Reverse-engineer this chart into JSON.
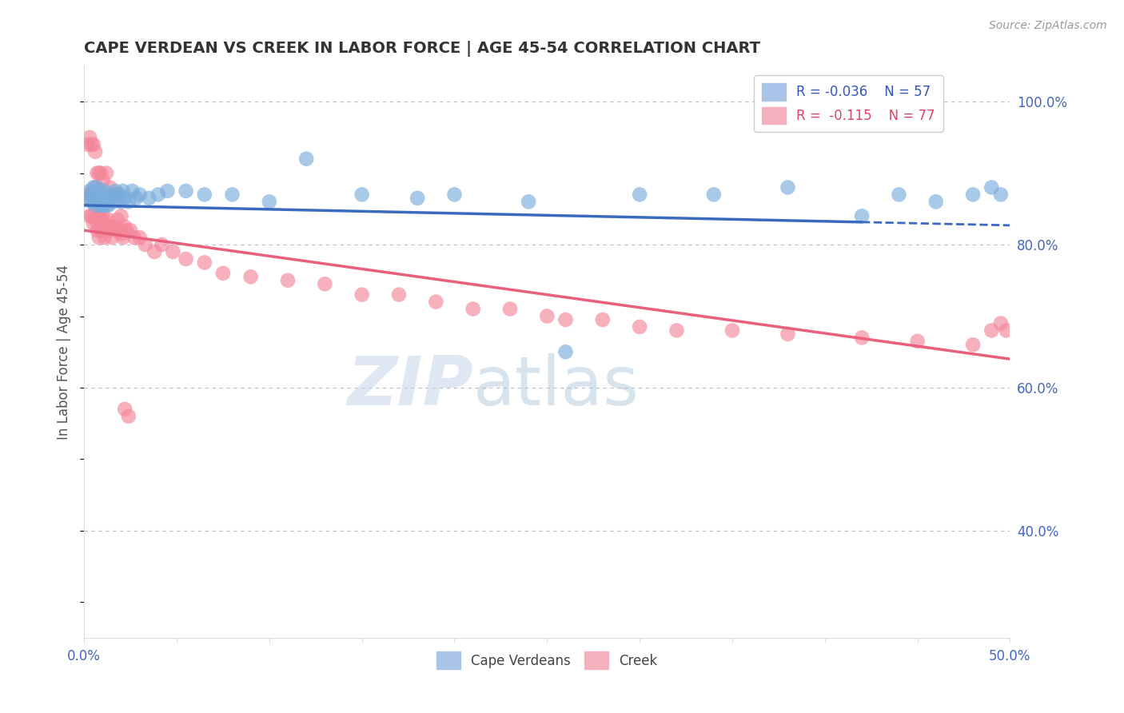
{
  "title": "CAPE VERDEAN VS CREEK IN LABOR FORCE | AGE 45-54 CORRELATION CHART",
  "source": "Source: ZipAtlas.com",
  "ylabel": "In Labor Force | Age 45-54",
  "xlim": [
    0.0,
    0.5
  ],
  "ylim": [
    0.25,
    1.05
  ],
  "yticks": [
    0.4,
    0.6,
    0.8,
    1.0
  ],
  "ytick_labels": [
    "40.0%",
    "60.0%",
    "80.0%",
    "100.0%"
  ],
  "xticks": [
    0.0,
    0.05,
    0.1,
    0.15,
    0.2,
    0.25,
    0.3,
    0.35,
    0.4,
    0.45,
    0.5
  ],
  "xtick_labels": [
    "0.0%",
    "",
    "",
    "",
    "",
    "",
    "",
    "",
    "",
    "",
    "50.0%"
  ],
  "blue_R": -0.036,
  "blue_N": 57,
  "pink_R": -0.115,
  "pink_N": 77,
  "blue_color": "#7aaddc",
  "pink_color": "#f4879a",
  "blue_line_color": "#3b6bbf",
  "pink_line_color": "#e8607a",
  "watermark_zip": "ZIP",
  "watermark_atlas": "atlas",
  "blue_line_solid_end": 0.42,
  "blue_line_x0": 0.0,
  "blue_line_y0": 0.855,
  "blue_line_x1": 0.5,
  "blue_line_y1": 0.827,
  "pink_line_x0": 0.0,
  "pink_line_y0": 0.82,
  "pink_line_x1": 0.5,
  "pink_line_y1": 0.64,
  "blue_scatter_x": [
    0.002,
    0.003,
    0.004,
    0.004,
    0.005,
    0.005,
    0.006,
    0.006,
    0.007,
    0.007,
    0.008,
    0.008,
    0.009,
    0.009,
    0.01,
    0.01,
    0.011,
    0.011,
    0.012,
    0.012,
    0.013,
    0.013,
    0.014,
    0.015,
    0.016,
    0.017,
    0.018,
    0.019,
    0.02,
    0.021,
    0.022,
    0.024,
    0.026,
    0.028,
    0.03,
    0.035,
    0.04,
    0.045,
    0.055,
    0.065,
    0.08,
    0.1,
    0.12,
    0.15,
    0.18,
    0.2,
    0.24,
    0.26,
    0.3,
    0.34,
    0.38,
    0.42,
    0.44,
    0.46,
    0.48,
    0.49,
    0.495
  ],
  "blue_scatter_y": [
    0.865,
    0.875,
    0.87,
    0.86,
    0.88,
    0.86,
    0.87,
    0.855,
    0.88,
    0.865,
    0.875,
    0.86,
    0.865,
    0.855,
    0.87,
    0.855,
    0.875,
    0.86,
    0.865,
    0.855,
    0.87,
    0.855,
    0.865,
    0.87,
    0.86,
    0.875,
    0.865,
    0.87,
    0.86,
    0.875,
    0.865,
    0.86,
    0.875,
    0.865,
    0.87,
    0.865,
    0.87,
    0.875,
    0.875,
    0.87,
    0.87,
    0.86,
    0.92,
    0.87,
    0.865,
    0.87,
    0.86,
    0.65,
    0.87,
    0.87,
    0.88,
    0.84,
    0.87,
    0.86,
    0.87,
    0.88,
    0.87
  ],
  "pink_scatter_x": [
    0.002,
    0.003,
    0.004,
    0.004,
    0.005,
    0.005,
    0.006,
    0.006,
    0.007,
    0.007,
    0.008,
    0.008,
    0.009,
    0.009,
    0.01,
    0.01,
    0.011,
    0.011,
    0.012,
    0.013,
    0.014,
    0.015,
    0.016,
    0.017,
    0.018,
    0.019,
    0.02,
    0.021,
    0.022,
    0.023,
    0.025,
    0.027,
    0.03,
    0.033,
    0.038,
    0.042,
    0.048,
    0.055,
    0.065,
    0.075,
    0.09,
    0.11,
    0.13,
    0.15,
    0.17,
    0.19,
    0.21,
    0.23,
    0.25,
    0.26,
    0.28,
    0.3,
    0.32,
    0.35,
    0.38,
    0.42,
    0.45,
    0.48,
    0.49,
    0.495,
    0.498,
    0.002,
    0.003,
    0.004,
    0.005,
    0.006,
    0.007,
    0.008,
    0.009,
    0.01,
    0.012,
    0.014,
    0.015,
    0.018,
    0.02,
    0.022,
    0.024
  ],
  "pink_scatter_y": [
    0.87,
    0.84,
    0.87,
    0.84,
    0.87,
    0.83,
    0.88,
    0.84,
    0.83,
    0.82,
    0.84,
    0.81,
    0.835,
    0.82,
    0.84,
    0.82,
    0.83,
    0.81,
    0.82,
    0.835,
    0.825,
    0.81,
    0.825,
    0.82,
    0.835,
    0.82,
    0.815,
    0.81,
    0.825,
    0.82,
    0.82,
    0.81,
    0.81,
    0.8,
    0.79,
    0.8,
    0.79,
    0.78,
    0.775,
    0.76,
    0.755,
    0.75,
    0.745,
    0.73,
    0.73,
    0.72,
    0.71,
    0.71,
    0.7,
    0.695,
    0.695,
    0.685,
    0.68,
    0.68,
    0.675,
    0.67,
    0.665,
    0.66,
    0.68,
    0.69,
    0.68,
    0.94,
    0.95,
    0.94,
    0.94,
    0.93,
    0.9,
    0.9,
    0.9,
    0.89,
    0.9,
    0.88,
    0.87,
    0.87,
    0.84,
    0.57,
    0.56
  ]
}
